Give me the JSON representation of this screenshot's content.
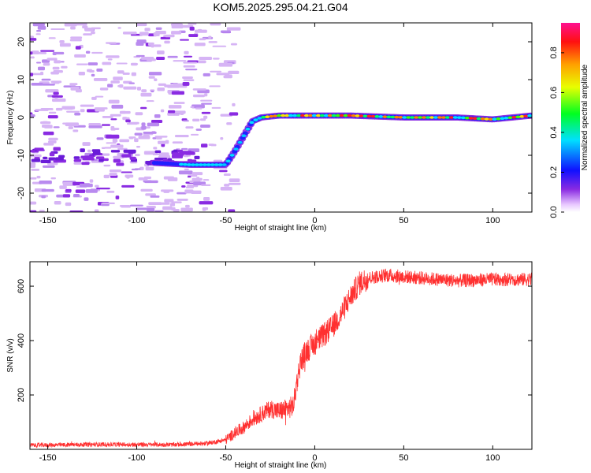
{
  "title": "KOM5.2025.295.04.21.G04",
  "chart_data": [
    {
      "type": "heatmap",
      "name": "spectrogram",
      "xlabel": "Height of straight line (km)",
      "ylabel": "Frequency (Hz)",
      "xlim": [
        -160,
        122
      ],
      "ylim": [
        -25,
        25
      ],
      "xticks": [
        "-150",
        "-100",
        "-50",
        "0",
        "50",
        "100"
      ],
      "yticks": [
        "-20",
        "-10",
        "0",
        "10",
        "20"
      ],
      "colorbar": {
        "label": "Normalized spectral amplitude",
        "range": [
          0,
          0.95
        ],
        "ticks": [
          "0.0",
          "0.2",
          "0.4",
          "0.6",
          "0.8"
        ]
      },
      "ridge": {
        "height_km": [
          -90,
          -70,
          -50,
          -45,
          -40,
          -35,
          -30,
          -20,
          0,
          20,
          50,
          80,
          100,
          122
        ],
        "frequency_hz": [
          -12,
          -12.5,
          -12.5,
          -9,
          -5,
          -1,
          0,
          0.5,
          0.5,
          0.5,
          0,
          0,
          -0.5,
          0.5
        ]
      }
    },
    {
      "type": "line",
      "name": "snr",
      "xlabel": "Height of straight line (km)",
      "ylabel": "SNR (v/v)",
      "xlim": [
        -160,
        122
      ],
      "ylim": [
        0,
        690
      ],
      "xticks": [
        "-150",
        "-100",
        "-50",
        "0",
        "50",
        "100"
      ],
      "yticks": [
        "200",
        "400",
        "600"
      ],
      "series": [
        {
          "name": "SNR",
          "color": "#ff3030",
          "x": [
            -160,
            -120,
            -80,
            -60,
            -50,
            -45,
            -40,
            -35,
            -30,
            -25,
            -20,
            -15,
            -12,
            -10,
            -8,
            -5,
            0,
            5,
            10,
            15,
            20,
            25,
            30,
            40,
            60,
            80,
            100,
            122
          ],
          "y": [
            15,
            18,
            17,
            22,
            35,
            60,
            80,
            110,
            130,
            150,
            140,
            150,
            160,
            250,
            320,
            360,
            390,
            420,
            450,
            500,
            560,
            610,
            630,
            640,
            630,
            620,
            625,
            625
          ]
        }
      ]
    }
  ]
}
